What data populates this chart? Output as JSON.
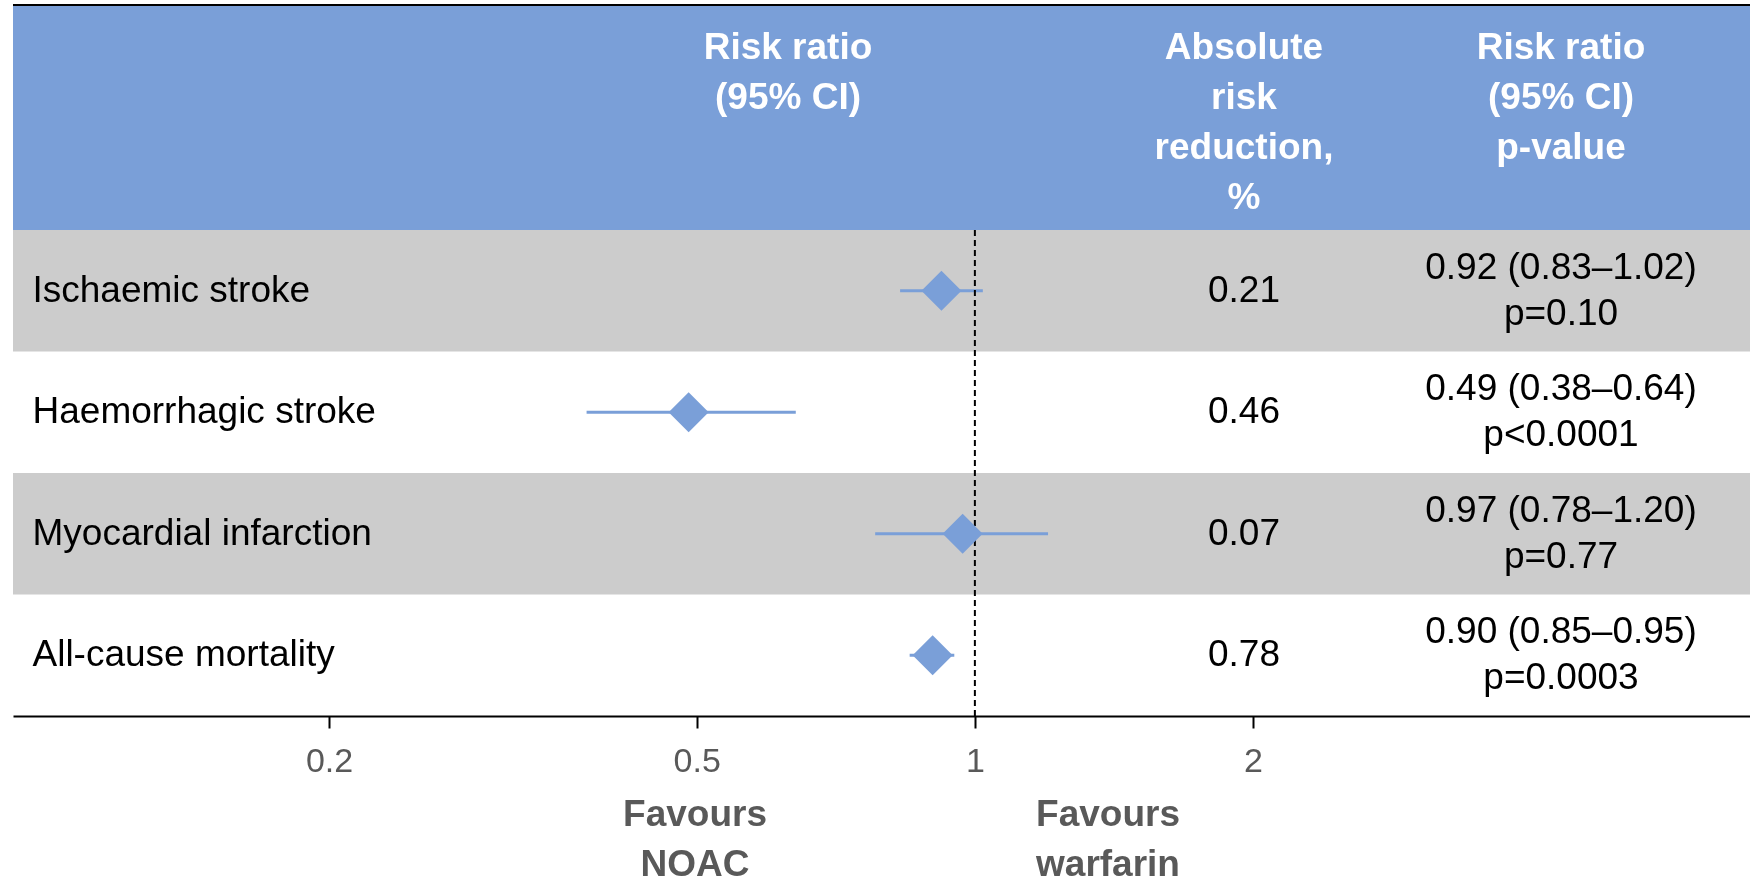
{
  "chart_data": {
    "type": "scatter",
    "xlabel": "Risk ratio (95% CI)",
    "categories": [
      "Ischaemic stroke",
      "Haemorrhagic stroke",
      "Myocardial infarction",
      "All-cause mortality"
    ],
    "values": [
      0.92,
      0.49,
      0.97,
      0.9
    ],
    "errors": [
      [
        0.83,
        1.02
      ],
      [
        0.38,
        0.64
      ],
      [
        0.78,
        1.2
      ],
      [
        0.85,
        0.95
      ]
    ],
    "color": "#7a9fd8",
    "marker": "diamond",
    "log": "x",
    "orientation": "horizontal",
    "xlim": [
      0.091,
      6.9
    ],
    "xticks": [
      0.2,
      0.5,
      1,
      2
    ],
    "ref_lines": [
      {
        "axis": "x",
        "value": 1,
        "line_style": "dashed",
        "color": "#000000"
      }
    ],
    "bands": [
      {
        "axis": "y",
        "from": "Ischaemic stroke",
        "to": "Ischaemic stroke",
        "color": "#cccccc"
      },
      {
        "axis": "y",
        "from": "Myocardial infarction",
        "to": "Myocardial infarction",
        "color": "#cccccc"
      }
    ],
    "annotations": [
      "Absolute risk reduction, %",
      "Risk ratio (95% CI) p-value",
      "Favours NOAC",
      "Favours warfarin",
      "0.21",
      "0.46",
      "0.07",
      "0.78",
      "0.92 (0.83–1.02) p=0.10",
      "0.49 (0.38–0.64) p<0.0001",
      "0.97 (0.78–1.20) p=0.77",
      "0.90 (0.85–0.95) p=0.0003"
    ]
  }
}
